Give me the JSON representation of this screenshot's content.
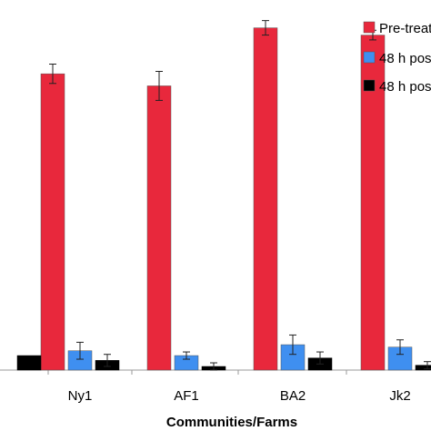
{
  "chart_data": {
    "type": "bar",
    "categories": [
      "",
      "Ny1",
      "AF1",
      "BA2",
      "Jk2"
    ],
    "series": [
      {
        "name": "Pre-treat",
        "color": "#e8283c",
        "values": [
          null,
          245,
          235,
          283,
          277
        ],
        "errors": [
          null,
          8,
          12,
          6,
          4
        ]
      },
      {
        "name": "48 h pos",
        "color": "#3f8ff0",
        "values": [
          null,
          16,
          12,
          21,
          19
        ],
        "errors": [
          null,
          7,
          3,
          8,
          6
        ]
      },
      {
        "name": "48 h pos",
        "color": "#000000",
        "values": [
          12,
          8,
          3,
          10,
          4
        ],
        "errors": [
          null,
          5,
          3,
          5,
          3
        ]
      }
    ],
    "xlabel": "Communities/Farms",
    "ylabel": "",
    "ylim": [
      0,
      300
    ],
    "grid": false,
    "legend_position": "top-right"
  }
}
